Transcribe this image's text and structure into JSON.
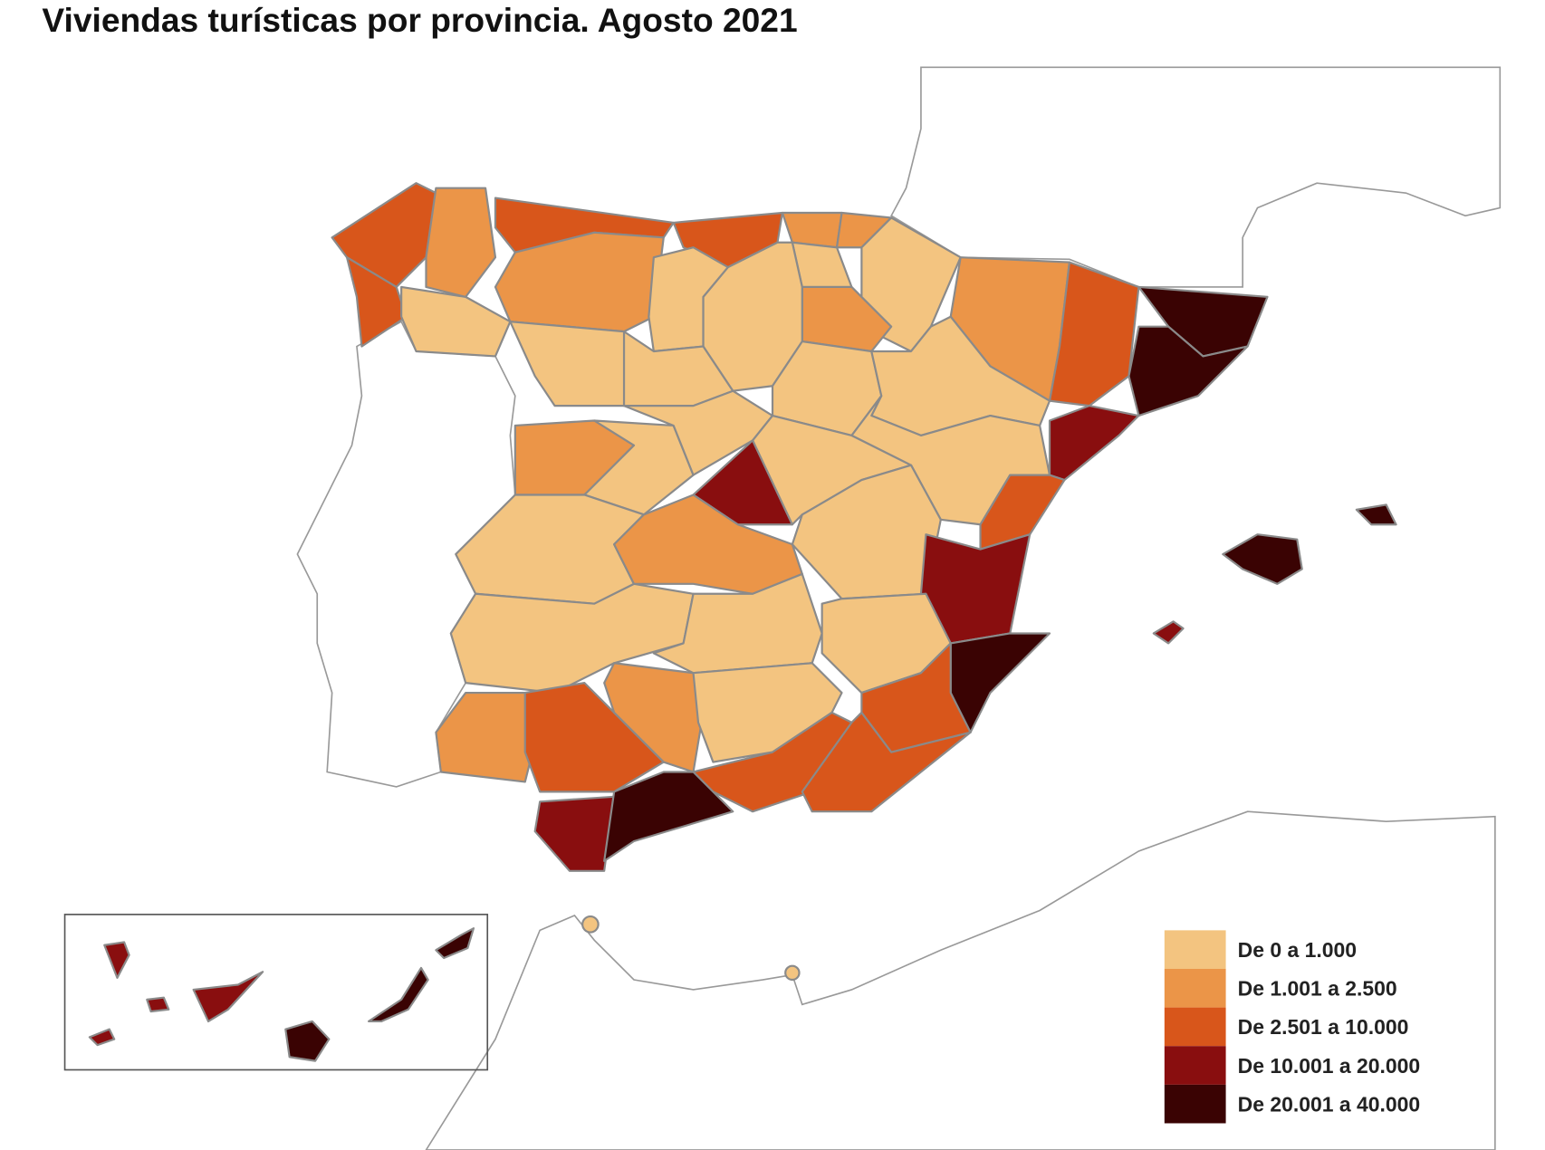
{
  "title": "Viviendas turísticas por provincia. Agosto 2021",
  "legend": [
    {
      "label": "De 0 a 1.000",
      "color": "#f3c480"
    },
    {
      "label": "De 1.001 a 2.500",
      "color": "#eb9548"
    },
    {
      "label": "De 2.501 a 10.000",
      "color": "#d8561b"
    },
    {
      "label": "De 10.001 a 20.000",
      "color": "#890e0f"
    },
    {
      "label": "De 20.001 a 40.000",
      "color": "#3a0303"
    }
  ]
}
